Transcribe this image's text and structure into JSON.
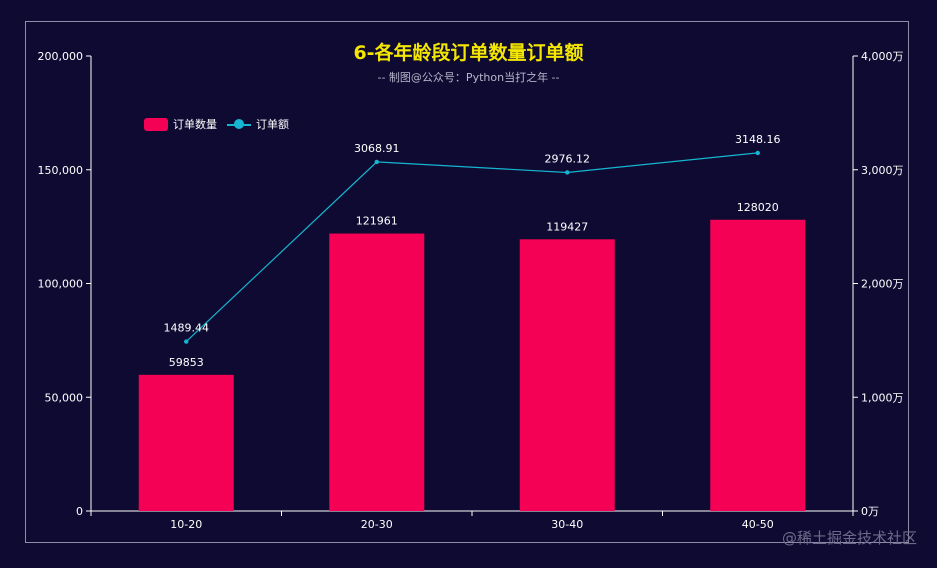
{
  "chart_data": {
    "type": "bar",
    "title": "6-各年龄段订单数量订单额",
    "subtitle": "-- 制图@公众号：Python当打之年 --",
    "categories": [
      "10-20",
      "20-30",
      "30-40",
      "40-50"
    ],
    "series": [
      {
        "name": "订单数量",
        "type": "bar",
        "axis": "left",
        "values": [
          59853,
          121961,
          119427,
          128020
        ],
        "labels": [
          "59853",
          "121961",
          "119427",
          "128020"
        ],
        "color": "#f40055"
      },
      {
        "name": "订单额",
        "type": "line",
        "axis": "right",
        "values": [
          1489.44,
          3068.91,
          2976.12,
          3148.16
        ],
        "labels": [
          "1489.44",
          "3068.91",
          "2976.12",
          "3148.16"
        ],
        "color": "#15b6d1"
      }
    ],
    "y_left": {
      "ylim": [
        0,
        200000
      ],
      "ticks": [
        0,
        50000,
        100000,
        150000,
        200000
      ],
      "tick_labels": [
        "0",
        "50,000",
        "100,000",
        "150,000",
        "200,000"
      ]
    },
    "y_right": {
      "ylim": [
        0,
        4000
      ],
      "ticks": [
        0,
        1000,
        2000,
        3000,
        4000
      ],
      "tick_labels": [
        "0万",
        "1,000万",
        "2,000万",
        "3,000万",
        "4,000万"
      ]
    },
    "xlabel": "",
    "ylabel": "",
    "grid": false,
    "legend": "top-left"
  },
  "watermark": "@稀土掘金技术社区",
  "colors": {
    "background": "#0f0a32",
    "title": "#f3e600",
    "axis": "#ffffff"
  }
}
